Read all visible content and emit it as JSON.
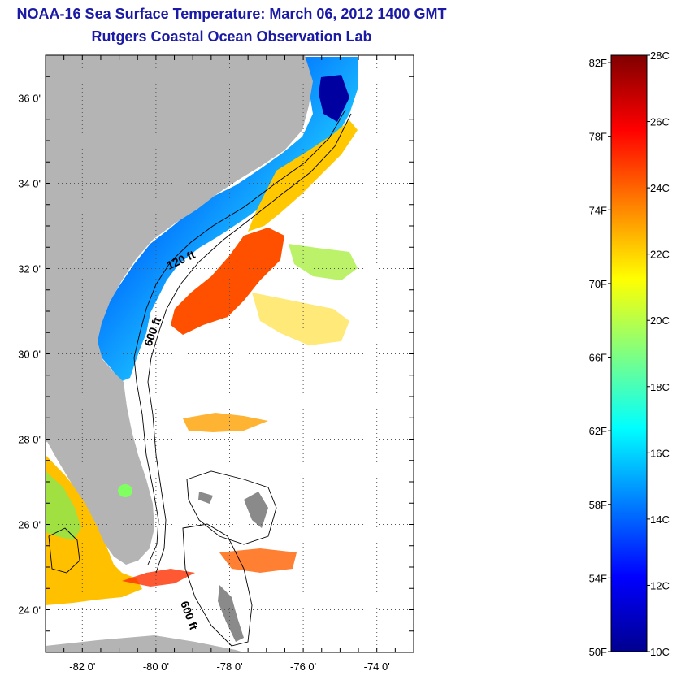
{
  "title": "NOAA-16 Sea Surface Temperature:  March 06, 2012 1400 GMT",
  "subtitle": "Rutgers Coastal Ocean Observation Lab",
  "map": {
    "lon_range": [
      -83,
      -73
    ],
    "lat_range": [
      23,
      37
    ],
    "lon_ticks": [
      {
        "value": -82,
        "label": "-82 0'"
      },
      {
        "value": -80,
        "label": "-80 0'"
      },
      {
        "value": -78,
        "label": "-78 0'"
      },
      {
        "value": -76,
        "label": "-76 0'"
      },
      {
        "value": -74,
        "label": "-74 0'"
      }
    ],
    "lat_ticks": [
      {
        "value": 24,
        "label": "24 0'"
      },
      {
        "value": 26,
        "label": "26 0'"
      },
      {
        "value": 28,
        "label": "28 0'"
      },
      {
        "value": 30,
        "label": "30 0'"
      },
      {
        "value": 32,
        "label": "32 0'"
      },
      {
        "value": 34,
        "label": "34 0'"
      },
      {
        "value": 36,
        "label": "36 0'"
      }
    ],
    "contour_labels": [
      "120 ft",
      "600 ft",
      "600 ft"
    ],
    "land_color": "#b4b4b4",
    "grid": true
  },
  "colorbar": {
    "min_c": 10,
    "max_c": 28,
    "celsius_labels": [
      "28C",
      "26C",
      "24C",
      "22C",
      "20C",
      "18C",
      "16C",
      "14C",
      "12C",
      "10C"
    ],
    "fahrenheit_labels": [
      "82F",
      "78F",
      "74F",
      "70F",
      "66F",
      "62F",
      "58F",
      "54F",
      "50F"
    ],
    "colormap": [
      "#00008f",
      "#0000ff",
      "#0080ff",
      "#00ffff",
      "#80ff80",
      "#ffff00",
      "#ff8000",
      "#ff0000",
      "#800000"
    ]
  },
  "title_color": "#1a1aa6"
}
